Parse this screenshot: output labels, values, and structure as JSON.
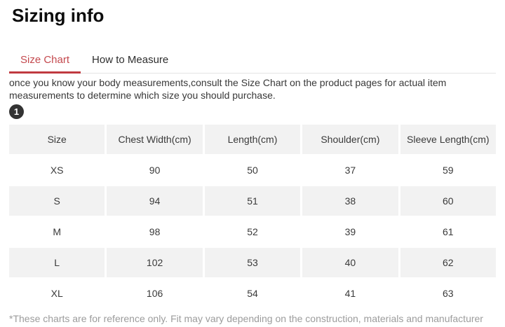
{
  "page": {
    "title": "Sizing info"
  },
  "tabs": [
    {
      "label": "Size Chart",
      "active": true
    },
    {
      "label": "How to Measure",
      "active": false
    }
  ],
  "description": "once you know your body measurements,consult the Size Chart on the product pages for actual item measurements to determine which size you should purchase.",
  "badge": "1",
  "table": {
    "columns": [
      "Size",
      "Chest Width(cm)",
      "Length(cm)",
      "Shoulder(cm)",
      "Sleeve Length(cm)"
    ],
    "rows": [
      [
        "XS",
        "90",
        "50",
        "37",
        "59"
      ],
      [
        "S",
        "94",
        "51",
        "38",
        "60"
      ],
      [
        "M",
        "98",
        "52",
        "39",
        "61"
      ],
      [
        "L",
        "102",
        "53",
        "40",
        "62"
      ],
      [
        "XL",
        "106",
        "54",
        "41",
        "63"
      ]
    ]
  },
  "footnote": "*These charts are for reference only. Fit may vary depending on the construction, materials and manufacturer",
  "colors": {
    "accent_red": "#c4494e",
    "tab_underline": "#c03a40",
    "row_alt_gray": "#f2f2f2",
    "badge_bg": "#333333",
    "footnote_gray": "#9c9c9c"
  }
}
